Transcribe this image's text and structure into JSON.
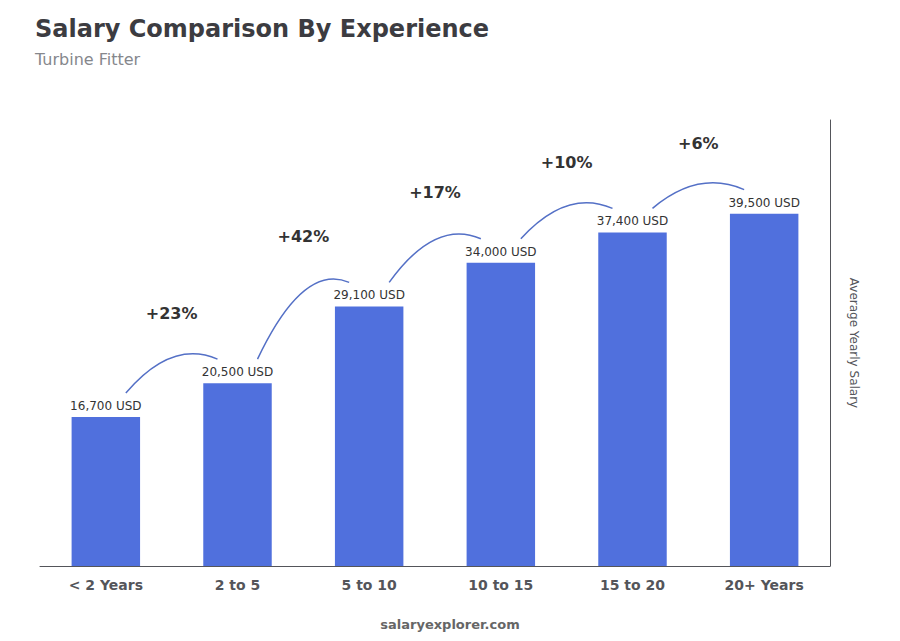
{
  "chart_data": {
    "type": "bar",
    "title": "Salary Comparison By Experience",
    "subtitle": "Turbine Fitter",
    "categories": [
      "< 2 Years",
      "2 to 5",
      "5 to 10",
      "10 to 15",
      "15 to 20",
      "20+ Years"
    ],
    "values": [
      16700,
      20500,
      29100,
      34000,
      37400,
      39500
    ],
    "value_labels": [
      "16,700 USD",
      "20,500 USD",
      "29,100 USD",
      "34,000 USD",
      "37,400 USD",
      "39,500 USD"
    ],
    "data_labels": true,
    "ylabel": "Average Yearly Salary",
    "ylim": [
      0,
      50000
    ],
    "tick_labels": "x",
    "grid": false,
    "annotations": [
      {
        "text": "+23%",
        "from": "< 2 Years",
        "to": "2 to 5"
      },
      {
        "text": "+42%",
        "from": "2 to 5",
        "to": "5 to 10"
      },
      {
        "text": "+17%",
        "from": "5 to 10",
        "to": "10 to 15"
      },
      {
        "text": "+10%",
        "from": "10 to 15",
        "to": "15 to 20"
      },
      {
        "text": "+6%",
        "from": "15 to 20",
        "to": "20+ Years"
      }
    ],
    "watermark": "salaryexplorer.com"
  }
}
